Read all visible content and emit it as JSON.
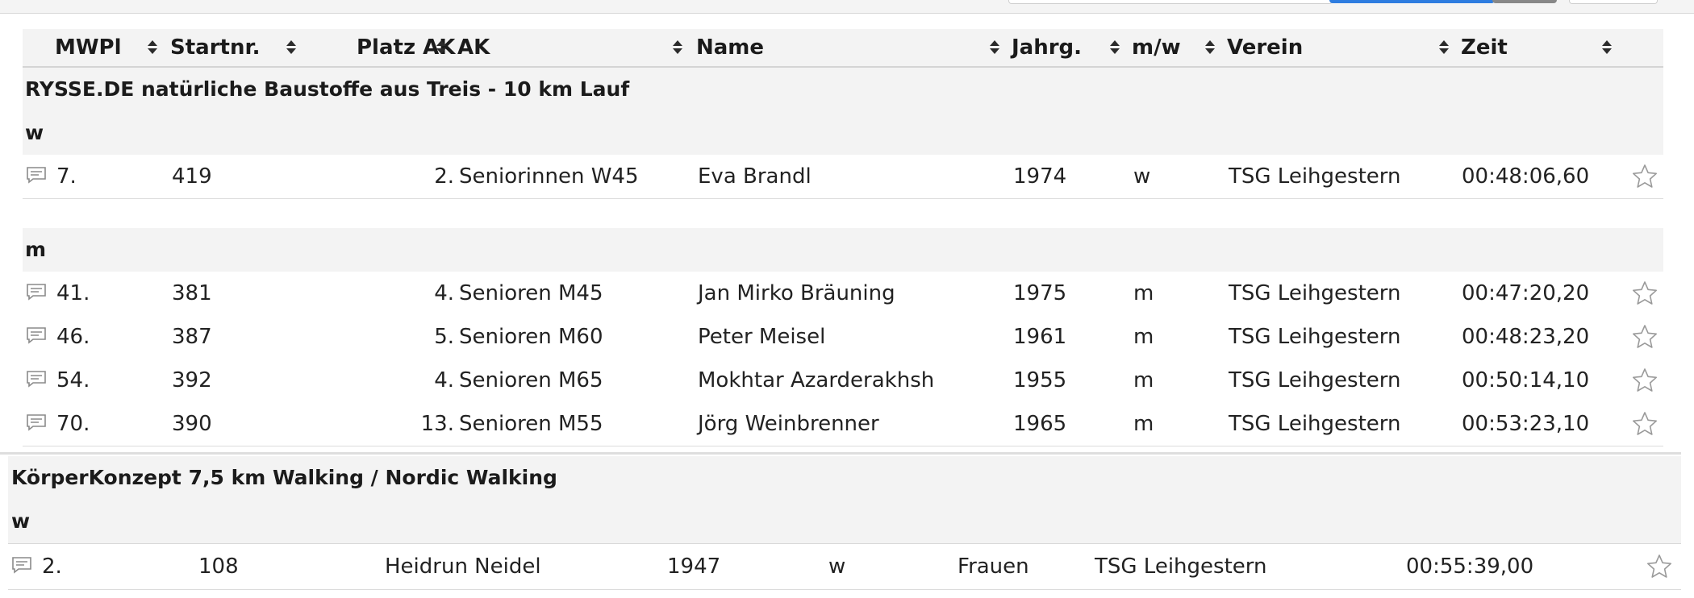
{
  "columns": [
    {
      "label": "MWPl"
    },
    {
      "label": "Startnr."
    },
    {
      "label": "Platz AK"
    },
    {
      "label": "AK"
    },
    {
      "label": "Name"
    },
    {
      "label": "Jahrg."
    },
    {
      "label": "m/w"
    },
    {
      "label": "Verein"
    },
    {
      "label": "Zeit"
    }
  ],
  "event1": {
    "title": "RYSSE.DE natürliche Baustoffe aus Treis - 10 km Lauf",
    "groups": [
      {
        "label": "w",
        "rows": [
          {
            "mwpl": "7.",
            "startnr": "419",
            "platz_ak": "2.",
            "ak": "Seniorinnen W45",
            "name": "Eva Brandl",
            "jahrg": "1974",
            "mw": "w",
            "verein": "TSG Leihgestern",
            "zeit": "00:48:06,60"
          }
        ]
      },
      {
        "label": "m",
        "rows": [
          {
            "mwpl": "41.",
            "startnr": "381",
            "platz_ak": "4.",
            "ak": "Senioren M45",
            "name": "Jan Mirko Bräuning",
            "jahrg": "1975",
            "mw": "m",
            "verein": "TSG Leihgestern",
            "zeit": "00:47:20,20"
          },
          {
            "mwpl": "46.",
            "startnr": "387",
            "platz_ak": "5.",
            "ak": "Senioren M60",
            "name": "Peter Meisel",
            "jahrg": "1961",
            "mw": "m",
            "verein": "TSG Leihgestern",
            "zeit": "00:48:23,20"
          },
          {
            "mwpl": "54.",
            "startnr": "392",
            "platz_ak": "4.",
            "ak": "Senioren M65",
            "name": "Mokhtar Azarderakhsh",
            "jahrg": "1955",
            "mw": "m",
            "verein": "TSG Leihgestern",
            "zeit": "00:50:14,10"
          },
          {
            "mwpl": "70.",
            "startnr": "390",
            "platz_ak": "13.",
            "ak": "Senioren M55",
            "name": "Jörg Weinbrenner",
            "jahrg": "1965",
            "mw": "m",
            "verein": "TSG Leihgestern",
            "zeit": "00:53:23,10"
          }
        ]
      }
    ]
  },
  "event2": {
    "title": "KörperKonzept 7,5 km Walking / Nordic Walking",
    "groups": [
      {
        "label": "w",
        "rows": [
          {
            "mwpl": "2.",
            "startnr": "108",
            "name": "Heidrun Neidel",
            "jahrg": "1947",
            "mw": "w",
            "ak": "Frauen",
            "verein": "TSG Leihgestern",
            "zeit": "00:55:39,00"
          }
        ]
      }
    ]
  },
  "icons": {
    "comment": "comment-icon",
    "favorite": "star-outline-icon"
  },
  "colors": {
    "header_bg": "#f3f3f3",
    "accent": "#2e7de0",
    "border": "#dcdcdc"
  }
}
